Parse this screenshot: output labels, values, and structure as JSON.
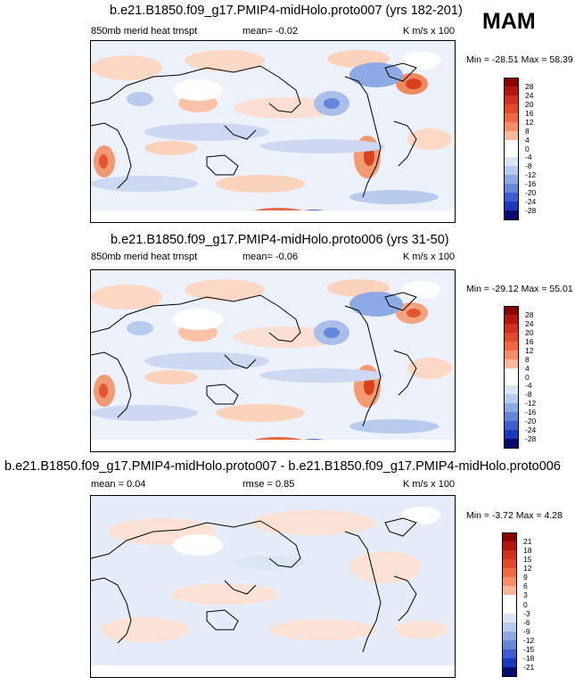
{
  "season": "MAM",
  "panels": [
    {
      "title": "b.e21.B1850.f09_g17.PMIP4-midHolo.proto007 (yrs 182-201)",
      "left_label": "850mb merid heat trnspt",
      "center_label": "mean=  -0.02",
      "right_label": "K m/s x 100",
      "minmax": "Min = -28.51 Max =  58.39",
      "colorbar_labels": [
        "28",
        "24",
        "20",
        "16",
        "12",
        "8",
        "4",
        "0",
        "-4",
        "-8",
        "-12",
        "-16",
        "-20",
        "-24",
        "-28"
      ]
    },
    {
      "title": "b.e21.B1850.f09_g17.PMIP4-midHolo.proto006 (yrs 31-50)",
      "left_label": "850mb merid heat trnspt",
      "center_label": "mean=  -0.06",
      "right_label": "K m/s x 100",
      "minmax": "Min = -29.12 Max =  55.01",
      "colorbar_labels": [
        "28",
        "24",
        "20",
        "16",
        "12",
        "8",
        "4",
        "0",
        "-4",
        "-8",
        "-12",
        "-16",
        "-20",
        "-24",
        "-28"
      ]
    },
    {
      "title": "b.e21.B1850.f09_g17.PMIP4-midHolo.proto007 - b.e21.B1850.f09_g17.PMIP4-midHolo.proto006",
      "left_label": "mean =  0.04",
      "center_label": "rmse =  0.85",
      "right_label": "K m/s x 100",
      "minmax": "Min =  -3.72 Max =   4.28",
      "colorbar_labels": [
        "21",
        "18",
        "15",
        "12",
        "9",
        "6",
        "3",
        "0",
        "-3",
        "-6",
        "-9",
        "-12",
        "-15",
        "-18",
        "-21"
      ]
    }
  ],
  "colorbar_colors": [
    "#8b0000",
    "#b2160c",
    "#d0301d",
    "#e24a2a",
    "#f0693f",
    "#f68f68",
    "#fab799",
    "#fde0cf",
    "#ffffff",
    "#dbe6f6",
    "#b7cbee",
    "#8eaae4",
    "#6587da",
    "#3e5fd0",
    "#1c38bf",
    "#0a1a9e",
    "#030c6c"
  ],
  "chart_data": [
    {
      "type": "heatmap",
      "title": "b.e21.B1850.f09_g17.PMIP4-midHolo.proto007 (yrs 182-201)",
      "variable": "850mb merid heat trnspt",
      "units": "K m/s x 100",
      "season": "MAM",
      "mean": -0.02,
      "min": -28.51,
      "max": 58.39,
      "levels": [
        -28,
        -24,
        -20,
        -16,
        -12,
        -8,
        -4,
        0,
        4,
        8,
        12,
        16,
        20,
        24,
        28
      ]
    },
    {
      "type": "heatmap",
      "title": "b.e21.B1850.f09_g17.PMIP4-midHolo.proto006 (yrs 31-50)",
      "variable": "850mb merid heat trnspt",
      "units": "K m/s x 100",
      "season": "MAM",
      "mean": -0.06,
      "min": -29.12,
      "max": 55.01,
      "levels": [
        -28,
        -24,
        -20,
        -16,
        -12,
        -8,
        -4,
        0,
        4,
        8,
        12,
        16,
        20,
        24,
        28
      ]
    },
    {
      "type": "heatmap",
      "title": "b.e21.B1850.f09_g17.PMIP4-midHolo.proto007 - b.e21.B1850.f09_g17.PMIP4-midHolo.proto006",
      "units": "K m/s x 100",
      "mean": 0.04,
      "rmse": 0.85,
      "min": -3.72,
      "max": 4.28,
      "levels": [
        -21,
        -18,
        -15,
        -12,
        -9,
        -6,
        -3,
        0,
        3,
        6,
        9,
        12,
        15,
        18,
        21
      ]
    }
  ]
}
